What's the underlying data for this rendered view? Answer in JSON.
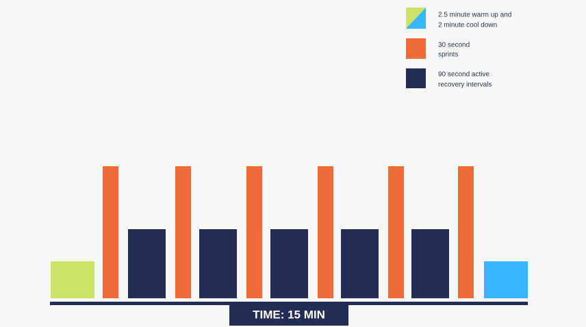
{
  "legend": [
    {
      "lines": [
        "2.5 minute warm up and",
        "2 minute cool down"
      ]
    },
    {
      "lines": [
        "30 second",
        "sprints"
      ]
    },
    {
      "lines": [
        "90 second active",
        "recovery intervals"
      ]
    }
  ],
  "footer": {
    "label": "TIME: 15 MIN"
  }
}
